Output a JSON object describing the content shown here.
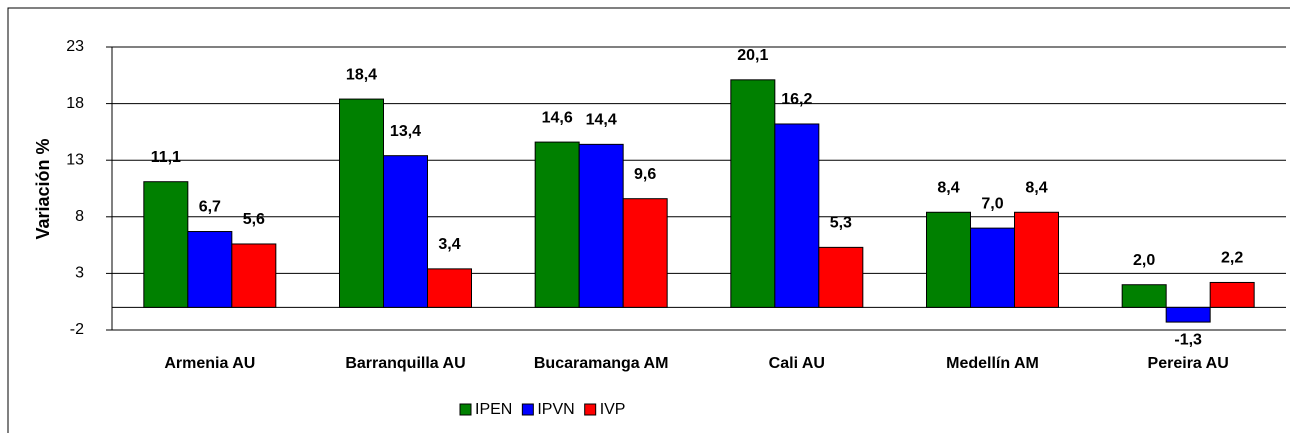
{
  "chart_data": {
    "type": "bar",
    "y_label": "Variación %",
    "categories": [
      "Armenia AU",
      "Barranquilla AU",
      "Bucaramanga AM",
      "Cali AU",
      "Medellín AM",
      "Pereira AU"
    ],
    "series": [
      {
        "name": "IPEN",
        "color": "#008000",
        "values": [
          11.1,
          18.4,
          14.6,
          20.1,
          8.4,
          2.0
        ],
        "value_labels": [
          "11,1",
          "18,4",
          "14,6",
          "20,1",
          "8,4",
          "2,0"
        ]
      },
      {
        "name": "IPVN",
        "color": "#0000ff",
        "values": [
          6.7,
          13.4,
          14.4,
          16.2,
          7.0,
          -1.3
        ],
        "value_labels": [
          "6,7",
          "13,4",
          "14,4",
          "16,2",
          "7,0",
          "-1,3"
        ]
      },
      {
        "name": "IVP",
        "color": "#ff0000",
        "values": [
          5.6,
          3.4,
          9.6,
          5.3,
          8.4,
          2.2
        ],
        "value_labels": [
          "5,6",
          "3,4",
          "9,6",
          "5,3",
          "8,4",
          "2,2"
        ]
      }
    ],
    "ylim": [
      -2,
      23
    ],
    "yticks": [
      -2,
      3,
      8,
      13,
      18,
      23
    ],
    "grid": true
  }
}
